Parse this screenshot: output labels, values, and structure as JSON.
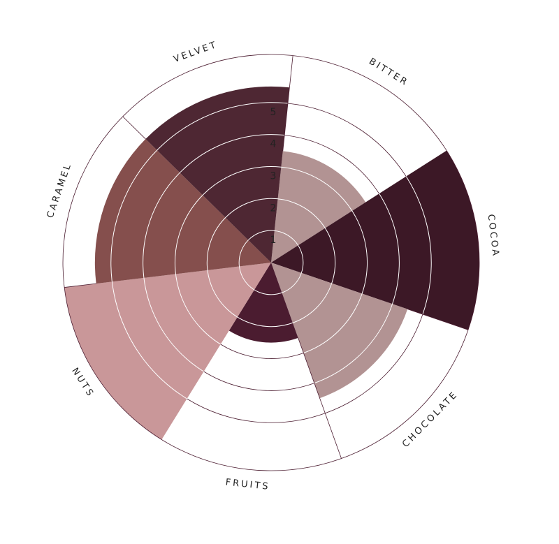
{
  "chart_data": {
    "type": "polar-area",
    "rmax": 6.5,
    "ticks": [
      1,
      2,
      3,
      4,
      5
    ],
    "categories": [
      "BITTER",
      "COCOA",
      "CHOCOLATE",
      "FRUITS",
      "NUTS",
      "CARAMEL",
      "VELVET"
    ],
    "values": [
      3.5,
      6.5,
      4.5,
      2.5,
      6.5,
      5.5,
      5.5
    ],
    "colors": [
      "#b29393",
      "#3c1826",
      "#b29393",
      "#4b1c30",
      "#c99799",
      "#854f4d",
      "#4e2733"
    ],
    "grid": true,
    "grid_color": "#4b1c30"
  }
}
